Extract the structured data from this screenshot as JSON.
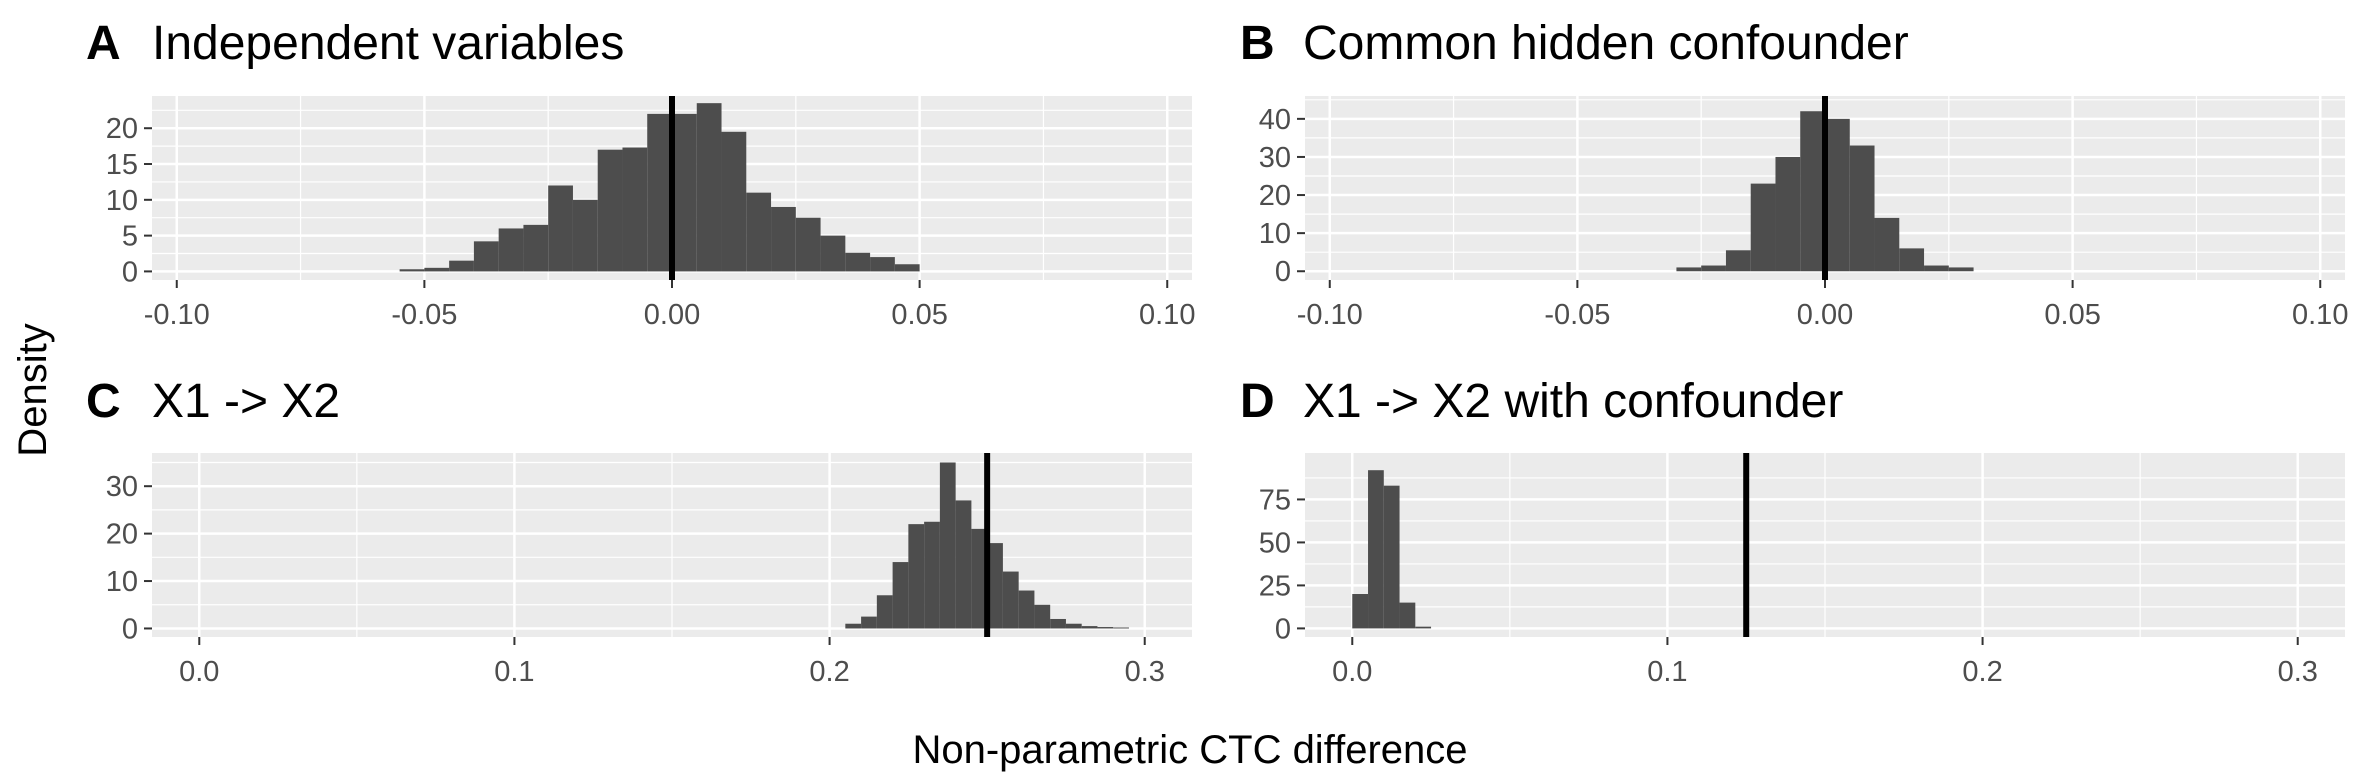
{
  "figure": {
    "ylabel": "Density",
    "xlabel": "Non-parametric CTC difference"
  },
  "colors": {
    "panel_bg": "#ebebeb",
    "grid": "#ffffff",
    "bar": "#4d4d4d",
    "reference_line": "#000000",
    "tick_text": "#4d4d4d"
  },
  "chart_data": [
    {
      "type": "bar",
      "tag": "A",
      "title": "Independent variables",
      "xlim": [
        -0.105,
        0.105
      ],
      "ylim": [
        -1.2,
        24.5
      ],
      "x_ticks": [
        -0.1,
        -0.05,
        0.0,
        0.05,
        0.1
      ],
      "x_tick_labels": [
        "-0.10",
        "-0.05",
        "0.00",
        "0.05",
        "0.10"
      ],
      "y_ticks": [
        0,
        5,
        10,
        15,
        20
      ],
      "y_tick_labels": [
        "0",
        "5",
        "10",
        "15",
        "20"
      ],
      "bin_width": 0.005,
      "bin_starts": [
        -0.055,
        -0.05,
        -0.045,
        -0.04,
        -0.035,
        -0.03,
        -0.025,
        -0.02,
        -0.015,
        -0.01,
        -0.005,
        0.0,
        0.005,
        0.01,
        0.015,
        0.02,
        0.025,
        0.03,
        0.035,
        0.04,
        0.045
      ],
      "values": [
        0.3,
        0.5,
        1.5,
        4.2,
        6.0,
        6.5,
        12.0,
        10.0,
        17.0,
        17.3,
        22.0,
        22.0,
        23.5,
        19.5,
        11.0,
        9.0,
        7.5,
        5.0,
        2.6,
        2.0,
        1.0
      ],
      "reference_line": 0.0,
      "grid": true
    },
    {
      "type": "bar",
      "tag": "B",
      "title": "Common hidden confounder",
      "xlim": [
        -0.105,
        0.105
      ],
      "ylim": [
        -2.3,
        46
      ],
      "x_ticks": [
        -0.1,
        -0.05,
        0.0,
        0.05,
        0.1
      ],
      "x_tick_labels": [
        "-0.10",
        "-0.05",
        "0.00",
        "0.05",
        "0.10"
      ],
      "y_ticks": [
        0,
        10,
        20,
        30,
        40
      ],
      "y_tick_labels": [
        "0",
        "10",
        "20",
        "30",
        "40"
      ],
      "bin_width": 0.005,
      "bin_starts": [
        -0.03,
        -0.025,
        -0.02,
        -0.015,
        -0.01,
        -0.005,
        0.0,
        0.005,
        0.01,
        0.015,
        0.02,
        0.025
      ],
      "values": [
        1.0,
        1.5,
        5.5,
        23.0,
        30.0,
        42.0,
        40.0,
        33.0,
        14.0,
        6.0,
        1.5,
        1.0
      ],
      "reference_line": 0.0,
      "grid": true
    },
    {
      "type": "bar",
      "tag": "C",
      "title": "X1 -> X2",
      "xlim": [
        -0.015,
        0.315
      ],
      "ylim": [
        -1.8,
        37
      ],
      "x_ticks": [
        0.0,
        0.1,
        0.2,
        0.3
      ],
      "x_tick_labels": [
        "0.0",
        "0.1",
        "0.2",
        "0.3"
      ],
      "y_ticks": [
        0,
        10,
        20,
        30
      ],
      "y_tick_labels": [
        "0",
        "10",
        "20",
        "30"
      ],
      "bin_width": 0.005,
      "bin_starts": [
        0.205,
        0.21,
        0.215,
        0.22,
        0.225,
        0.23,
        0.235,
        0.24,
        0.245,
        0.25,
        0.255,
        0.26,
        0.265,
        0.27,
        0.275,
        0.28,
        0.285,
        0.29
      ],
      "values": [
        1.0,
        2.5,
        7.0,
        14.0,
        22.0,
        22.5,
        35.0,
        27.0,
        21.0,
        18.0,
        12.0,
        8.0,
        5.0,
        2.0,
        1.0,
        0.5,
        0.3,
        0.2
      ],
      "reference_line": 0.25,
      "grid": true
    },
    {
      "type": "bar",
      "tag": "D",
      "title": "X1 -> X2 with confounder",
      "xlim": [
        -0.015,
        0.315
      ],
      "ylim": [
        -5,
        102
      ],
      "x_ticks": [
        0.0,
        0.1,
        0.2,
        0.3
      ],
      "x_tick_labels": [
        "0.0",
        "0.1",
        "0.2",
        "0.3"
      ],
      "y_ticks": [
        0,
        25,
        50,
        75
      ],
      "y_tick_labels": [
        "0",
        "25",
        "50",
        "75"
      ],
      "bin_width": 0.005,
      "bin_starts": [
        0.0,
        0.005,
        0.01,
        0.015,
        0.02
      ],
      "values": [
        20.0,
        92.0,
        83.0,
        15.0,
        1.0
      ],
      "reference_line": 0.125,
      "grid": true
    }
  ]
}
